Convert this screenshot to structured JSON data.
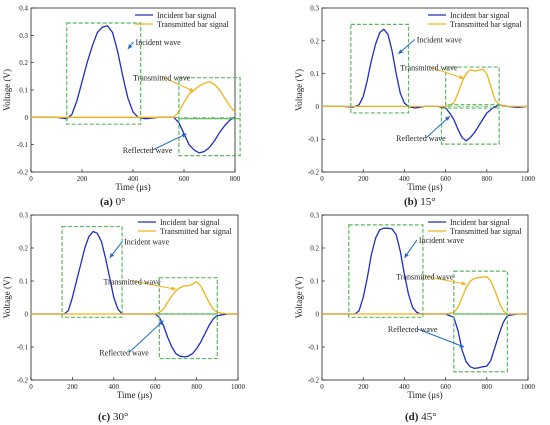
{
  "chart_data": [
    {
      "type": "line",
      "caption_letter": "(a)",
      "caption_text": " 0°",
      "xlabel": "Time (μs)",
      "ylabel": "Voltage (V)",
      "xlim": [
        0,
        800
      ],
      "ylim": [
        -0.2,
        0.4
      ],
      "xticks": [
        0,
        200,
        400,
        600,
        800
      ],
      "yticks": [
        -0.2,
        -0.1,
        0,
        0.1,
        0.2,
        0.3,
        0.4
      ],
      "legend_position": "top-right",
      "series": [
        {
          "name": "Incident bar signal",
          "color": "#1f2fbf",
          "x": [
            0,
            100,
            140,
            160,
            180,
            200,
            220,
            240,
            260,
            280,
            300,
            320,
            340,
            360,
            380,
            400,
            420,
            450,
            500,
            560,
            580,
            600,
            620,
            640,
            660,
            680,
            700,
            720,
            740,
            760,
            780,
            800
          ],
          "y": [
            0,
            0,
            -0.005,
            0.01,
            0.06,
            0.13,
            0.2,
            0.26,
            0.31,
            0.33,
            0.335,
            0.31,
            0.24,
            0.15,
            0.07,
            0.02,
            0,
            -0.005,
            0,
            0,
            -0.02,
            -0.06,
            -0.1,
            -0.12,
            -0.13,
            -0.125,
            -0.11,
            -0.085,
            -0.055,
            -0.03,
            -0.01,
            0
          ]
        },
        {
          "name": "Transmitted bar signal",
          "color": "#f0b418",
          "x": [
            0,
            100,
            200,
            300,
            400,
            500,
            560,
            580,
            600,
            620,
            640,
            660,
            680,
            700,
            720,
            740,
            760,
            780,
            800
          ],
          "y": [
            0,
            0,
            0,
            0,
            0,
            0,
            0,
            0.02,
            0.055,
            0.085,
            0.1,
            0.115,
            0.125,
            0.13,
            0.12,
            0.1,
            0.07,
            0.04,
            0.02
          ]
        }
      ],
      "annotations": [
        {
          "text": "Incident wave",
          "box_x": [
            140,
            430
          ],
          "box_y": [
            -0.025,
            0.345
          ],
          "point": [
            380,
            0.25
          ],
          "label_at": [
            410,
            0.265
          ]
        },
        {
          "text": "Transmitted wave",
          "box_x": [
            580,
            820
          ],
          "box_y": [
            -0.005,
            0.145
          ],
          "point": [
            640,
            0.095
          ],
          "label_at": [
            400,
            0.135
          ]
        },
        {
          "text": "Reflected wave",
          "box_x": [
            580,
            820
          ],
          "box_y": [
            -0.14,
            -0.005
          ],
          "point": [
            610,
            -0.06
          ],
          "label_at": [
            360,
            -0.13
          ]
        }
      ]
    },
    {
      "type": "line",
      "caption_letter": "(b)",
      "caption_text": " 15°",
      "xlabel": "Time (μs)",
      "ylabel": "Voltage (V)",
      "xlim": [
        0,
        1000
      ],
      "ylim": [
        -0.2,
        0.3
      ],
      "xticks": [
        0,
        200,
        400,
        600,
        800,
        1000
      ],
      "yticks": [
        -0.2,
        -0.1,
        0,
        0.1,
        0.2,
        0.3
      ],
      "legend_position": "top-right",
      "series": [
        {
          "name": "Incident bar signal",
          "color": "#1f2fbf",
          "x": [
            0,
            100,
            150,
            180,
            200,
            220,
            240,
            260,
            280,
            300,
            320,
            340,
            360,
            380,
            400,
            420,
            450,
            500,
            560,
            600,
            620,
            640,
            660,
            680,
            700,
            720,
            740,
            760,
            780,
            800,
            830,
            860,
            900,
            950,
            1000
          ],
          "y": [
            0,
            0,
            -0.002,
            0.005,
            0.03,
            0.08,
            0.14,
            0.19,
            0.225,
            0.235,
            0.22,
            0.17,
            0.1,
            0.04,
            0.01,
            0,
            -0.005,
            0,
            0,
            -0.005,
            -0.02,
            -0.04,
            -0.07,
            -0.095,
            -0.105,
            -0.095,
            -0.08,
            -0.06,
            -0.04,
            -0.02,
            -0.005,
            0.005,
            0,
            -0.003,
            0
          ]
        },
        {
          "name": "Transmitted bar signal",
          "color": "#f0b418",
          "x": [
            0,
            100,
            200,
            300,
            400,
            500,
            600,
            640,
            660,
            680,
            700,
            720,
            740,
            760,
            780,
            800,
            820,
            840,
            860,
            900,
            950,
            1000
          ],
          "y": [
            0,
            0,
            0,
            0,
            0,
            0,
            0,
            0.01,
            0.04,
            0.075,
            0.1,
            0.112,
            0.108,
            0.11,
            0.113,
            0.1,
            0.06,
            0.02,
            0.005,
            0,
            0,
            0
          ]
        }
      ],
      "annotations": [
        {
          "text": "Incident wave",
          "box_x": [
            140,
            420
          ],
          "box_y": [
            -0.02,
            0.25
          ],
          "point": [
            370,
            0.16
          ],
          "label_at": [
            460,
            0.195
          ]
        },
        {
          "text": "Transmitted wave",
          "box_x": [
            600,
            860
          ],
          "box_y": [
            0.005,
            0.12
          ],
          "point": [
            690,
            0.085
          ],
          "label_at": [
            380,
            0.11
          ]
        },
        {
          "text": "Reflected wave",
          "box_x": [
            580,
            860
          ],
          "box_y": [
            -0.115,
            -0.005
          ],
          "point": [
            620,
            -0.03
          ],
          "label_at": [
            360,
            -0.105
          ]
        }
      ]
    },
    {
      "type": "line",
      "caption_letter": "(c)",
      "caption_text": " 30°",
      "xlabel": "Time (μs)",
      "ylabel": "Voltage (V)",
      "xlim": [
        0,
        1000
      ],
      "ylim": [
        -0.2,
        0.3
      ],
      "xticks": [
        0,
        200,
        400,
        600,
        800,
        1000
      ],
      "yticks": [
        -0.2,
        -0.1,
        0,
        0.1,
        0.2,
        0.3
      ],
      "legend_position": "top-right",
      "series": [
        {
          "name": "Incident bar signal",
          "color": "#1f2fbf",
          "x": [
            0,
            100,
            160,
            180,
            200,
            220,
            240,
            260,
            280,
            300,
            320,
            340,
            360,
            380,
            400,
            420,
            440,
            480,
            550,
            600,
            620,
            640,
            660,
            680,
            700,
            720,
            740,
            760,
            780,
            800,
            820,
            840,
            860,
            880,
            900,
            950,
            1000
          ],
          "y": [
            0,
            0,
            0,
            0.01,
            0.05,
            0.1,
            0.15,
            0.2,
            0.235,
            0.25,
            0.245,
            0.22,
            0.17,
            0.11,
            0.05,
            0.015,
            0,
            0,
            0,
            0,
            -0.01,
            -0.035,
            -0.07,
            -0.1,
            -0.12,
            -0.128,
            -0.13,
            -0.128,
            -0.12,
            -0.105,
            -0.085,
            -0.06,
            -0.035,
            -0.015,
            -0.005,
            0,
            0
          ]
        },
        {
          "name": "Transmitted bar signal",
          "color": "#f0b418",
          "x": [
            0,
            100,
            200,
            300,
            400,
            500,
            600,
            620,
            640,
            660,
            680,
            700,
            720,
            740,
            760,
            780,
            800,
            820,
            840,
            860,
            880,
            900,
            950,
            1000
          ],
          "y": [
            0,
            0,
            0,
            0,
            0,
            0,
            0,
            0.005,
            0.015,
            0.035,
            0.055,
            0.07,
            0.08,
            0.085,
            0.085,
            0.09,
            0.098,
            0.085,
            0.06,
            0.035,
            0.015,
            0.005,
            0,
            0
          ]
        }
      ],
      "annotations": [
        {
          "text": "Incident wave",
          "box_x": [
            150,
            440
          ],
          "box_y": [
            -0.01,
            0.265
          ],
          "point": [
            380,
            0.17
          ],
          "label_at": [
            450,
            0.21
          ]
        },
        {
          "text": "Transmitted wave",
          "box_x": [
            620,
            900
          ],
          "box_y": [
            0.0,
            0.11
          ],
          "point": [
            700,
            0.075
          ],
          "label_at": [
            350,
            0.09
          ]
        },
        {
          "text": "Reflected wave",
          "box_x": [
            620,
            900
          ],
          "box_y": [
            -0.135,
            0.0
          ],
          "point": [
            640,
            -0.02
          ],
          "label_at": [
            330,
            -0.125
          ]
        }
      ]
    },
    {
      "type": "line",
      "caption_letter": "(d)",
      "caption_text": " 45°",
      "xlabel": "Time (μs)",
      "ylabel": "Voltage (V)",
      "xlim": [
        0,
        1000
      ],
      "ylim": [
        -0.2,
        0.3
      ],
      "xticks": [
        0,
        200,
        400,
        600,
        800,
        1000
      ],
      "yticks": [
        -0.2,
        -0.1,
        0,
        0.1,
        0.2,
        0.3
      ],
      "legend_position": "top-right",
      "series": [
        {
          "name": "Incident bar signal",
          "color": "#1f2fbf",
          "x": [
            0,
            100,
            160,
            180,
            200,
            220,
            240,
            260,
            280,
            300,
            320,
            340,
            360,
            380,
            400,
            420,
            440,
            460,
            480,
            550,
            600,
            640,
            660,
            680,
            700,
            720,
            740,
            760,
            780,
            800,
            820,
            840,
            860,
            880,
            900,
            950,
            1000
          ],
          "y": [
            0,
            0,
            0,
            0.01,
            0.05,
            0.11,
            0.18,
            0.23,
            0.255,
            0.26,
            0.26,
            0.258,
            0.24,
            0.19,
            0.12,
            0.06,
            0.02,
            0.005,
            0,
            0,
            0,
            -0.01,
            -0.05,
            -0.11,
            -0.145,
            -0.16,
            -0.165,
            -0.163,
            -0.16,
            -0.158,
            -0.14,
            -0.1,
            -0.06,
            -0.025,
            -0.005,
            0,
            0
          ]
        },
        {
          "name": "Transmitted bar signal",
          "color": "#f0b418",
          "x": [
            0,
            100,
            200,
            300,
            400,
            500,
            600,
            640,
            660,
            680,
            700,
            720,
            740,
            760,
            780,
            800,
            820,
            840,
            860,
            880,
            900,
            950,
            1000
          ],
          "y": [
            0,
            0,
            0,
            0,
            0,
            0,
            0,
            0.005,
            0.02,
            0.05,
            0.08,
            0.1,
            0.108,
            0.11,
            0.112,
            0.113,
            0.1,
            0.07,
            0.035,
            0.01,
            0,
            0,
            0
          ]
        }
      ],
      "annotations": [
        {
          "text": "Incident wave",
          "box_x": [
            130,
            490
          ],
          "box_y": [
            -0.01,
            0.27
          ],
          "point": [
            400,
            0.17
          ],
          "label_at": [
            470,
            0.215
          ]
        },
        {
          "text": "Transmitted wave",
          "box_x": [
            640,
            900
          ],
          "box_y": [
            0.0,
            0.13
          ],
          "point": [
            700,
            0.09
          ],
          "label_at": [
            360,
            0.105
          ]
        },
        {
          "text": "Reflected wave",
          "box_x": [
            640,
            900
          ],
          "box_y": [
            -0.175,
            0.0
          ],
          "point": [
            690,
            -0.1
          ],
          "label_at": [
            320,
            -0.055
          ]
        }
      ]
    }
  ]
}
